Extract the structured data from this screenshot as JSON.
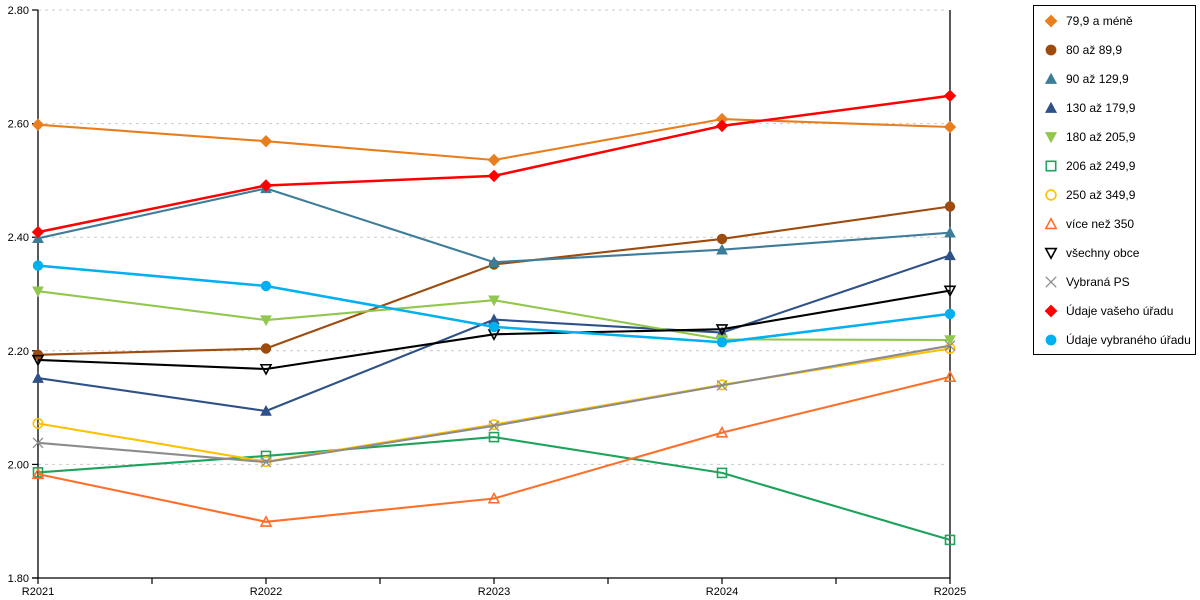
{
  "chart_data": {
    "type": "line",
    "title": "",
    "xlabel": "",
    "ylabel": "",
    "x": [
      "R2021",
      "R2022",
      "R2023",
      "R2024",
      "R2025"
    ],
    "xtick_labels": [
      "R2021",
      "R2022",
      "R2023",
      "R2024",
      "R2025"
    ],
    "ylim": [
      1.8,
      2.8
    ],
    "ytick_values": [
      1.8,
      2.0,
      2.2,
      2.4,
      2.6,
      2.8
    ],
    "ytick_labels": [
      "1.80",
      "2.00",
      "2.20",
      "2.40",
      "2.60",
      "2.80"
    ],
    "grid": "horizontal-dashed",
    "gridline_color": "#c9c9c9",
    "axis_color": "#000000",
    "legend_position": "right",
    "series": [
      {
        "name": "79,9 a méně",
        "color": "#e87e1e",
        "marker": "diamond",
        "fill": "filled",
        "values": [
          2.598,
          2.569,
          2.536,
          2.608,
          2.594
        ]
      },
      {
        "name": "80 až 89,9",
        "color": "#9e4b0e",
        "marker": "circle",
        "fill": "filled",
        "values": [
          2.193,
          2.204,
          2.352,
          2.397,
          2.454
        ]
      },
      {
        "name": "90 až 129,9",
        "color": "#3e7d9a",
        "marker": "triangle-up",
        "fill": "filled",
        "values": [
          2.398,
          2.486,
          2.356,
          2.378,
          2.408
        ]
      },
      {
        "name": "130 až 179,9",
        "color": "#2e5188",
        "marker": "triangle-up",
        "fill": "filled",
        "values": [
          2.152,
          2.094,
          2.255,
          2.232,
          2.368
        ]
      },
      {
        "name": "180 až 205,9",
        "color": "#92c74d",
        "marker": "triangle-down",
        "fill": "filled",
        "values": [
          2.305,
          2.254,
          2.289,
          2.22,
          2.219
        ]
      },
      {
        "name": "206 až 249,9",
        "color": "#1ea25c",
        "marker": "square",
        "fill": "hollow",
        "values": [
          1.986,
          2.015,
          2.048,
          1.985,
          1.867
        ]
      },
      {
        "name": "250 až 349,9",
        "color": "#ffc000",
        "marker": "circle",
        "fill": "hollow",
        "values": [
          2.072,
          2.005,
          2.07,
          2.14,
          2.204
        ]
      },
      {
        "name": "více než 350",
        "color": "#ff6f2a",
        "marker": "triangle-up",
        "fill": "hollow",
        "values": [
          1.983,
          1.899,
          1.94,
          2.056,
          2.154
        ]
      },
      {
        "name": "všechny obce",
        "color": "#000000",
        "marker": "triangle-down",
        "fill": "hollow",
        "values": [
          2.184,
          2.168,
          2.229,
          2.238,
          2.306
        ]
      },
      {
        "name": "Vybraná PS",
        "color": "#8c8c8c",
        "marker": "x",
        "fill": "line",
        "values": [
          2.038,
          2.004,
          2.068,
          2.139,
          2.209
        ]
      },
      {
        "name": "Údaje vašeho úřadu",
        "color": "#fe0000",
        "marker": "diamond",
        "fill": "filled",
        "values": [
          2.409,
          2.491,
          2.508,
          2.596,
          2.649
        ]
      },
      {
        "name": "Údaje vybraného úřadu",
        "color": "#00b0f0",
        "marker": "circle",
        "fill": "filled",
        "values": [
          2.35,
          2.314,
          2.242,
          2.215,
          2.265
        ]
      }
    ]
  }
}
